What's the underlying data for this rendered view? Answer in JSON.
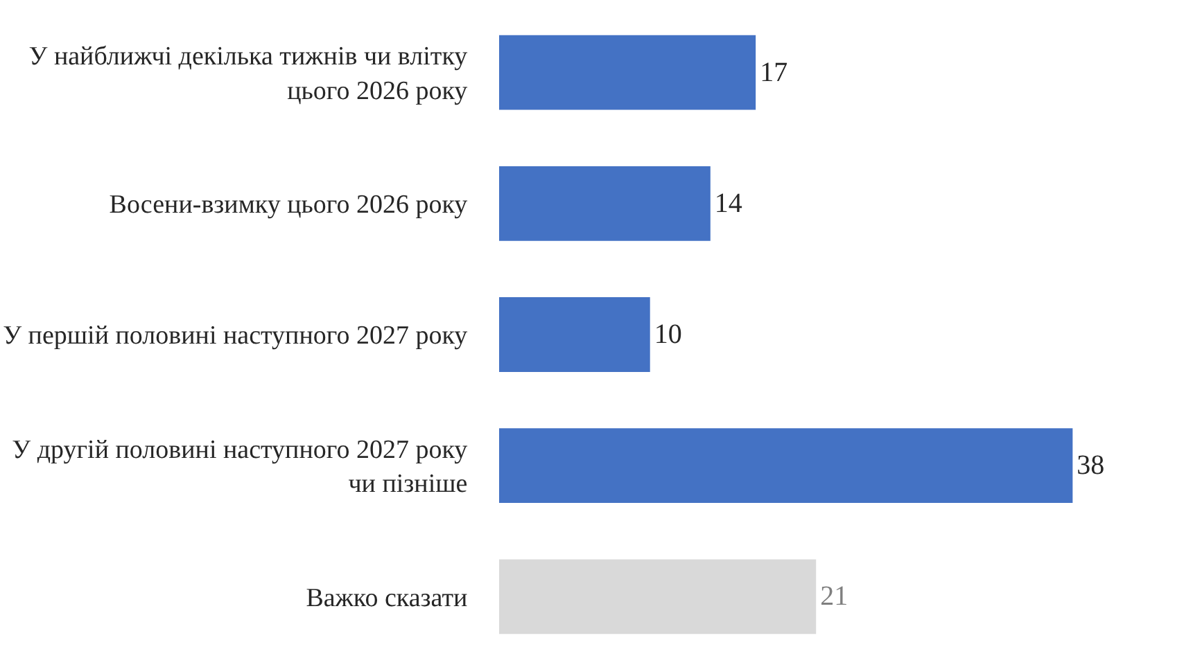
{
  "chart_data": {
    "type": "bar",
    "orientation": "horizontal",
    "data_labels": true,
    "categories": [
      "У найближчі декілька тижнів чи влітку\nцього 2026 року",
      "Восени-взимку цього 2026 року",
      "У першій половині наступного 2027 року",
      "У другій половині наступного 2027 року\nчи пізніше",
      "Важко сказати"
    ],
    "values": [
      17,
      14,
      10,
      38,
      21
    ],
    "colors": [
      "#4472c4",
      "#4472c4",
      "#4472c4",
      "#4472c4",
      "#d9d9d9"
    ]
  }
}
